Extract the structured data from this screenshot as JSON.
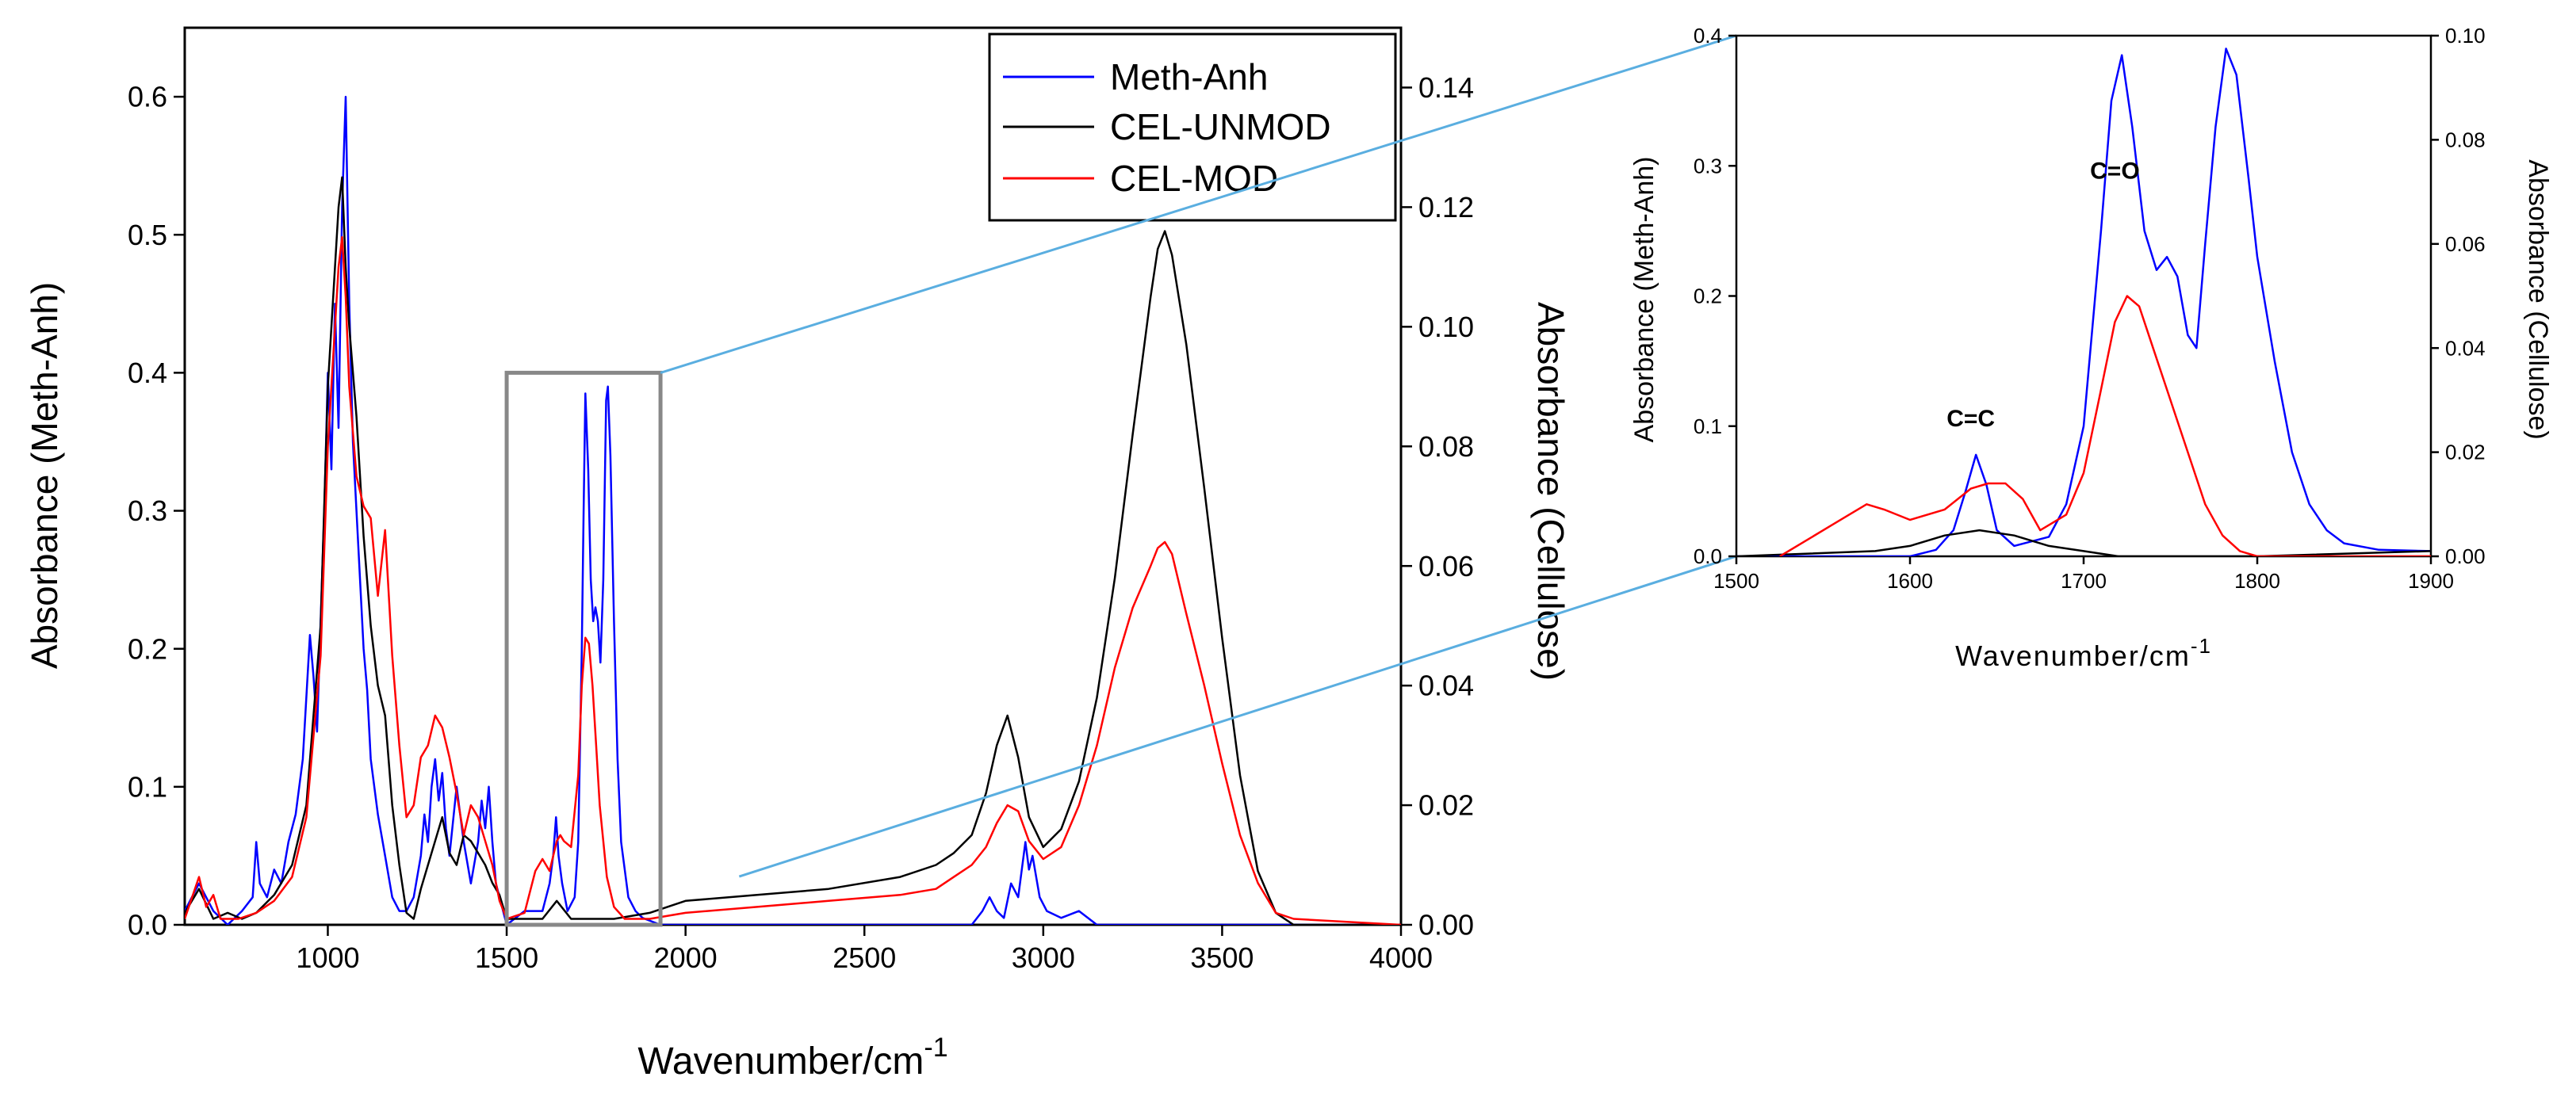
{
  "chart_data": [
    {
      "type": "line",
      "title": "",
      "xlabel": "Wavenumber/cm",
      "xlabel_superscript": "-1",
      "ylabel": "Absorbance (Meth-Anh)",
      "y2label": "Absorbance (Cellulose)",
      "xlim": [
        600,
        4000
      ],
      "ylim": [
        0,
        0.65
      ],
      "y2lim": [
        0,
        0.15
      ],
      "xticks": [
        "1000",
        "1500",
        "2000",
        "2500",
        "3000",
        "3500",
        "4000"
      ],
      "yticks": [
        "0.0",
        "0.1",
        "0.2",
        "0.3",
        "0.4",
        "0.5",
        "0.6"
      ],
      "y2ticks": [
        "0.00",
        "0.02",
        "0.04",
        "0.06",
        "0.08",
        "0.10",
        "0.12",
        "0.14"
      ],
      "legend": {
        "placement": "top-right",
        "entries": [
          {
            "name": "Meth-Anh",
            "color": "#0000ff"
          },
          {
            "name": "CEL-UNMOD",
            "color": "#000000"
          },
          {
            "name": "CEL-MOD",
            "color": "#ff0000"
          }
        ]
      },
      "zoom_box": {
        "x_range": [
          1500,
          1930
        ],
        "y_range": [
          0,
          0.4
        ]
      },
      "series": [
        {
          "name": "Meth-Anh",
          "axis": "left",
          "color": "#0000ff",
          "x": [
            600,
            640,
            680,
            720,
            760,
            790,
            800,
            810,
            830,
            850,
            870,
            890,
            910,
            930,
            950,
            960,
            970,
            980,
            990,
            1000,
            1010,
            1020,
            1030,
            1040,
            1050,
            1060,
            1070,
            1080,
            1090,
            1100,
            1110,
            1120,
            1140,
            1160,
            1180,
            1200,
            1220,
            1240,
            1260,
            1270,
            1280,
            1290,
            1300,
            1310,
            1320,
            1330,
            1340,
            1360,
            1380,
            1400,
            1420,
            1430,
            1440,
            1450,
            1460,
            1470,
            1480,
            1500,
            1550,
            1600,
            1620,
            1630,
            1638,
            1645,
            1655,
            1670,
            1690,
            1700,
            1710,
            1715,
            1720,
            1728,
            1735,
            1742,
            1748,
            1755,
            1762,
            1770,
            1778,
            1783,
            1790,
            1800,
            1810,
            1820,
            1840,
            1860,
            1880,
            1930,
            2000,
            2500,
            2800,
            2830,
            2850,
            2870,
            2890,
            2910,
            2930,
            2950,
            2960,
            2970,
            2990,
            3010,
            3050,
            3100,
            3150,
            3200,
            4000
          ],
          "y": [
            0.01,
            0.03,
            0.01,
            0.0,
            0.01,
            0.02,
            0.06,
            0.03,
            0.02,
            0.04,
            0.03,
            0.06,
            0.08,
            0.12,
            0.21,
            0.18,
            0.14,
            0.22,
            0.3,
            0.4,
            0.33,
            0.45,
            0.36,
            0.52,
            0.6,
            0.45,
            0.35,
            0.3,
            0.25,
            0.2,
            0.17,
            0.12,
            0.08,
            0.05,
            0.02,
            0.01,
            0.01,
            0.02,
            0.05,
            0.08,
            0.06,
            0.1,
            0.12,
            0.09,
            0.11,
            0.07,
            0.05,
            0.1,
            0.06,
            0.03,
            0.06,
            0.09,
            0.07,
            0.1,
            0.06,
            0.03,
            0.02,
            0.0,
            0.01,
            0.01,
            0.03,
            0.05,
            0.078,
            0.05,
            0.03,
            0.01,
            0.02,
            0.06,
            0.2,
            0.3,
            0.385,
            0.33,
            0.25,
            0.22,
            0.23,
            0.22,
            0.19,
            0.25,
            0.38,
            0.39,
            0.34,
            0.22,
            0.12,
            0.06,
            0.02,
            0.01,
            0.005,
            0.0,
            0.0,
            0.0,
            0.0,
            0.01,
            0.02,
            0.01,
            0.005,
            0.03,
            0.02,
            0.06,
            0.04,
            0.05,
            0.02,
            0.01,
            0.005,
            0.01,
            0.0,
            0.0,
            0.0
          ]
        },
        {
          "name": "CEL-UNMOD",
          "axis": "right",
          "color": "#000000",
          "x": [
            600,
            640,
            680,
            720,
            760,
            800,
            850,
            900,
            940,
            980,
            1000,
            1020,
            1030,
            1040,
            1050,
            1060,
            1080,
            1100,
            1120,
            1140,
            1160,
            1180,
            1200,
            1220,
            1240,
            1260,
            1280,
            1300,
            1320,
            1340,
            1360,
            1380,
            1400,
            1420,
            1440,
            1460,
            1480,
            1500,
            1550,
            1600,
            1640,
            1680,
            1700,
            1800,
            1900,
            2000,
            2200,
            2400,
            2600,
            2700,
            2750,
            2800,
            2840,
            2870,
            2900,
            2930,
            2960,
            3000,
            3050,
            3100,
            3150,
            3200,
            3250,
            3300,
            3320,
            3340,
            3360,
            3400,
            3450,
            3500,
            3550,
            3600,
            3650,
            3700,
            4000
          ],
          "y": [
            0.002,
            0.006,
            0.001,
            0.002,
            0.001,
            0.002,
            0.005,
            0.01,
            0.02,
            0.05,
            0.09,
            0.11,
            0.12,
            0.125,
            0.11,
            0.1,
            0.085,
            0.065,
            0.05,
            0.04,
            0.035,
            0.02,
            0.01,
            0.002,
            0.001,
            0.006,
            0.01,
            0.014,
            0.018,
            0.012,
            0.01,
            0.015,
            0.014,
            0.012,
            0.01,
            0.007,
            0.005,
            0.001,
            0.001,
            0.001,
            0.004,
            0.001,
            0.001,
            0.001,
            0.002,
            0.004,
            0.005,
            0.006,
            0.008,
            0.01,
            0.012,
            0.015,
            0.022,
            0.03,
            0.035,
            0.028,
            0.018,
            0.013,
            0.016,
            0.024,
            0.038,
            0.058,
            0.082,
            0.105,
            0.113,
            0.116,
            0.112,
            0.097,
            0.073,
            0.048,
            0.025,
            0.009,
            0.002,
            0.0,
            0.0
          ]
        },
        {
          "name": "CEL-MOD",
          "axis": "right",
          "color": "#ff0000",
          "x": [
            600,
            640,
            660,
            680,
            700,
            750,
            800,
            850,
            900,
            940,
            980,
            1000,
            1020,
            1030,
            1040,
            1050,
            1060,
            1080,
            1100,
            1120,
            1140,
            1160,
            1180,
            1200,
            1220,
            1240,
            1260,
            1280,
            1300,
            1320,
            1340,
            1360,
            1380,
            1400,
            1420,
            1440,
            1460,
            1480,
            1500,
            1550,
            1580,
            1600,
            1620,
            1640,
            1650,
            1660,
            1680,
            1700,
            1710,
            1720,
            1730,
            1740,
            1750,
            1760,
            1780,
            1800,
            1830,
            1900,
            2000,
            2200,
            2400,
            2600,
            2700,
            2750,
            2800,
            2840,
            2870,
            2900,
            2930,
            2960,
            3000,
            3050,
            3100,
            3150,
            3200,
            3250,
            3300,
            3320,
            3340,
            3360,
            3400,
            3450,
            3500,
            3550,
            3600,
            3650,
            3700,
            4000
          ],
          "y": [
            0.001,
            0.008,
            0.003,
            0.005,
            0.001,
            0.001,
            0.002,
            0.004,
            0.008,
            0.018,
            0.045,
            0.08,
            0.1,
            0.11,
            0.115,
            0.105,
            0.09,
            0.075,
            0.07,
            0.068,
            0.055,
            0.066,
            0.045,
            0.03,
            0.018,
            0.02,
            0.028,
            0.03,
            0.035,
            0.033,
            0.028,
            0.022,
            0.015,
            0.02,
            0.018,
            0.014,
            0.01,
            0.004,
            0.001,
            0.002,
            0.009,
            0.011,
            0.009,
            0.014,
            0.015,
            0.014,
            0.013,
            0.025,
            0.04,
            0.048,
            0.047,
            0.04,
            0.03,
            0.02,
            0.008,
            0.003,
            0.001,
            0.001,
            0.002,
            0.003,
            0.004,
            0.005,
            0.006,
            0.008,
            0.01,
            0.013,
            0.017,
            0.02,
            0.019,
            0.014,
            0.011,
            0.013,
            0.02,
            0.03,
            0.043,
            0.053,
            0.06,
            0.063,
            0.064,
            0.062,
            0.052,
            0.04,
            0.027,
            0.015,
            0.007,
            0.002,
            0.001,
            0.0
          ]
        }
      ]
    },
    {
      "type": "line",
      "title": "",
      "xlabel": "Wavenumber/cm",
      "xlabel_superscript": "-1",
      "ylabel": "Absorbance (Meth-Anh)",
      "y2label": "Absorbance (Cellulose)",
      "xlim": [
        1500,
        1900
      ],
      "ylim": [
        0,
        0.4
      ],
      "y2lim": [
        0,
        0.1
      ],
      "xticks": [
        "1500",
        "1600",
        "1700",
        "1800",
        "1900"
      ],
      "yticks": [
        "0.0",
        "0.1",
        "0.2",
        "0.3",
        "0.4"
      ],
      "y2ticks": [
        "0.00",
        "0.02",
        "0.04",
        "0.06",
        "0.08",
        "0.10"
      ],
      "annotations": [
        {
          "text": "C=C",
          "x": 1635,
          "y": 0.1
        },
        {
          "text": "C=O",
          "x": 1718,
          "y": 0.29
        }
      ],
      "series": [
        {
          "name": "Meth-Anh",
          "axis": "left",
          "color": "#0000ff",
          "x": [
            1500,
            1600,
            1615,
            1625,
            1632,
            1638,
            1644,
            1650,
            1660,
            1680,
            1690,
            1700,
            1710,
            1716,
            1722,
            1728,
            1735,
            1742,
            1748,
            1754,
            1760,
            1765,
            1770,
            1776,
            1782,
            1788,
            1795,
            1800,
            1810,
            1820,
            1830,
            1840,
            1850,
            1870,
            1900
          ],
          "y": [
            0.0,
            0.0,
            0.005,
            0.02,
            0.05,
            0.078,
            0.055,
            0.02,
            0.008,
            0.015,
            0.04,
            0.1,
            0.25,
            0.35,
            0.385,
            0.33,
            0.25,
            0.22,
            0.23,
            0.215,
            0.17,
            0.16,
            0.24,
            0.33,
            0.39,
            0.37,
            0.29,
            0.23,
            0.15,
            0.08,
            0.04,
            0.02,
            0.01,
            0.005,
            0.004
          ]
        },
        {
          "name": "CEL-UNMOD",
          "axis": "right",
          "color": "#000000",
          "x": [
            1500,
            1580,
            1600,
            1620,
            1640,
            1660,
            1680,
            1700,
            1720,
            1800,
            1900
          ],
          "y": [
            0.0,
            0.001,
            0.002,
            0.004,
            0.005,
            0.004,
            0.002,
            0.001,
            0.0,
            0.0,
            0.001
          ]
        },
        {
          "name": "CEL-MOD",
          "axis": "right",
          "color": "#ff0000",
          "x": [
            1525,
            1540,
            1555,
            1565,
            1575,
            1585,
            1600,
            1620,
            1635,
            1645,
            1655,
            1665,
            1675,
            1690,
            1700,
            1710,
            1718,
            1725,
            1732,
            1740,
            1750,
            1760,
            1770,
            1780,
            1790,
            1800,
            1810,
            1820,
            1840,
            1860,
            1880,
            1900
          ],
          "y": [
            0.0,
            0.003,
            0.006,
            0.008,
            0.01,
            0.009,
            0.007,
            0.009,
            0.013,
            0.014,
            0.014,
            0.011,
            0.005,
            0.008,
            0.016,
            0.032,
            0.045,
            0.05,
            0.048,
            0.04,
            0.03,
            0.02,
            0.01,
            0.004,
            0.001,
            0.0,
            0.0,
            0.0,
            0.0,
            0.0,
            0.0,
            0.0
          ]
        }
      ]
    }
  ]
}
